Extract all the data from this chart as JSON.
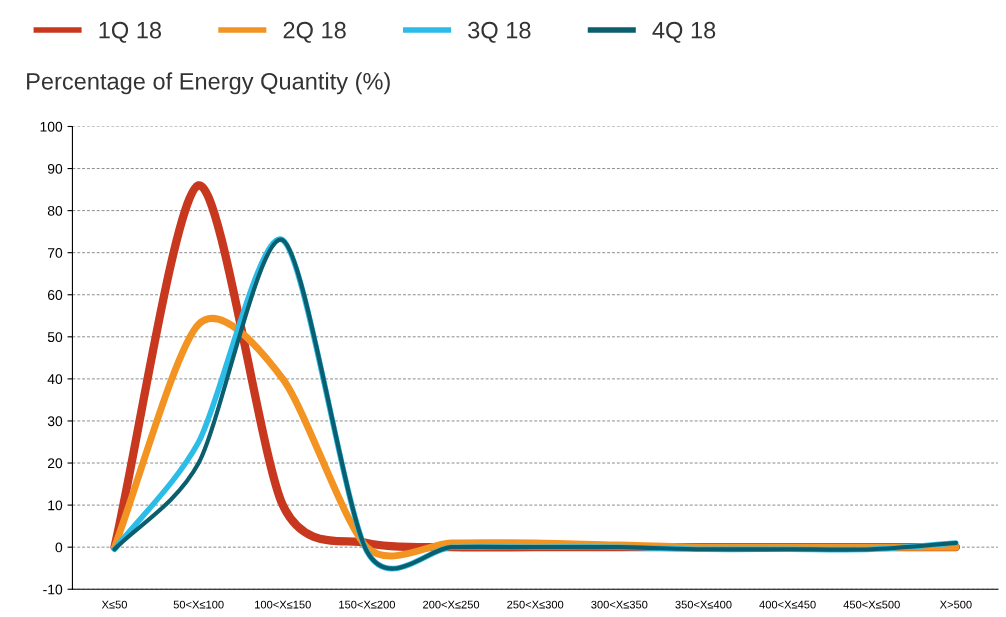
{
  "chart_data": {
    "type": "line",
    "title": "Percentage of Energy Quantity (%)",
    "categories": [
      "X≤50",
      "50<X≤100",
      "100<X≤150",
      "150<X≤200",
      "200<X≤250",
      "250<X≤300",
      "300<X≤350",
      "350<X≤400",
      "400<X≤450",
      "450<X≤500",
      "X>500"
    ],
    "series": [
      {
        "name": "1Q 18",
        "color": "#c8381f",
        "values": [
          0,
          86,
          10,
          1,
          0,
          0,
          0,
          0,
          0,
          0,
          0
        ]
      },
      {
        "name": "2Q 18",
        "color": "#f39322",
        "values": [
          0,
          53,
          40,
          0,
          1,
          1,
          0.5,
          0,
          0,
          0,
          0
        ]
      },
      {
        "name": "3Q 18",
        "color": "#2bbde8",
        "values": [
          -0.5,
          25,
          73,
          -1,
          0,
          0,
          0,
          -0.5,
          -0.5,
          -0.5,
          1
        ]
      },
      {
        "name": "4Q 18",
        "color": "#0b5e6e",
        "values": [
          -0.5,
          20,
          73,
          -1,
          0,
          0,
          0,
          -0.5,
          -0.5,
          -0.5,
          1
        ]
      }
    ],
    "ylim": [
      -10,
      100
    ],
    "yticks": [
      -10,
      0,
      10,
      20,
      30,
      40,
      50,
      60,
      70,
      80,
      90,
      100
    ],
    "grid": "y",
    "legend": "top left",
    "marker": "none",
    "line_style": "solid"
  }
}
